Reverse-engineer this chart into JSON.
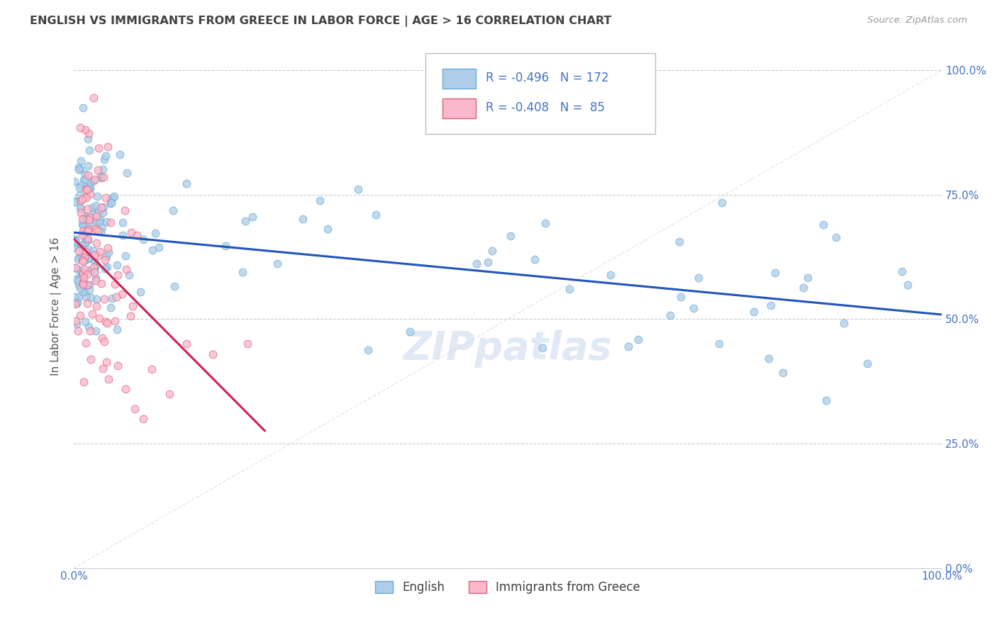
{
  "title": "ENGLISH VS IMMIGRANTS FROM GREECE IN LABOR FORCE | AGE > 16 CORRELATION CHART",
  "source": "Source: ZipAtlas.com",
  "ylabel": "In Labor Force | Age > 16",
  "xlim": [
    0.0,
    1.0
  ],
  "ylim": [
    0.0,
    1.05
  ],
  "xtick_positions": [
    0.0,
    1.0
  ],
  "xtick_labels": [
    "0.0%",
    "100.0%"
  ],
  "ytick_values": [
    0.0,
    0.25,
    0.5,
    0.75,
    1.0
  ],
  "ytick_labels": [
    "0.0%",
    "25.0%",
    "50.0%",
    "75.0%",
    "100.0%"
  ],
  "english_R": -0.496,
  "english_N": 172,
  "greek_R": -0.408,
  "greek_N": 85,
  "english_color": "#aecde8",
  "english_edge_color": "#6aaad4",
  "greek_color": "#f9b8cc",
  "greek_edge_color": "#e0607a",
  "english_line_color": "#2255bb",
  "greek_line_color": "#cc2255",
  "legend_color": "#4472c4",
  "watermark": "ZIPpatlas",
  "background_color": "#ffffff",
  "grid_color": "#cccccc",
  "tick_label_color": "#4472c4",
  "title_color": "#404040",
  "source_color": "#999999",
  "ylabel_color": "#555555",
  "diag_color": "#dddddd"
}
